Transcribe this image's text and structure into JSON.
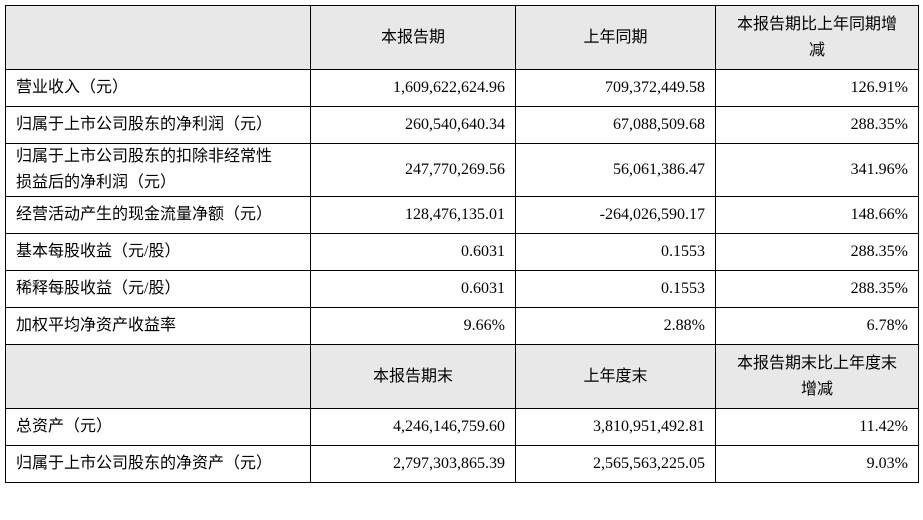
{
  "sections": [
    {
      "header": [
        "本报告期",
        "上年同期",
        "本报告期比上年同期增减"
      ],
      "rows": [
        [
          "营业收入（元）",
          "1,609,622,624.96",
          "709,372,449.58",
          "126.91%"
        ],
        [
          "归属于上市公司股东的净利润（元）",
          "260,540,640.34",
          "67,088,509.68",
          "288.35%"
        ],
        [
          "归属于上市公司股东的扣除非经常性损益后的净利润（元）",
          "247,770,269.56",
          "56,061,386.47",
          "341.96%"
        ],
        [
          "经营活动产生的现金流量净额（元）",
          "128,476,135.01",
          "-264,026,590.17",
          "148.66%"
        ],
        [
          "基本每股收益（元/股）",
          "0.6031",
          "0.1553",
          "288.35%"
        ],
        [
          "稀释每股收益（元/股）",
          "0.6031",
          "0.1553",
          "288.35%"
        ],
        [
          "加权平均净资产收益率",
          "9.66%",
          "2.88%",
          "6.78%"
        ]
      ]
    },
    {
      "header": [
        "本报告期末",
        "上年度末",
        "本报告期末比上年度末增减"
      ],
      "rows": [
        [
          "总资产（元）",
          "4,246,146,759.60",
          "3,810,951,492.81",
          "11.42%"
        ],
        [
          "归属于上市公司股东的净资产（元）",
          "2,797,303,865.39",
          "2,565,563,225.05",
          "9.03%"
        ]
      ]
    }
  ]
}
